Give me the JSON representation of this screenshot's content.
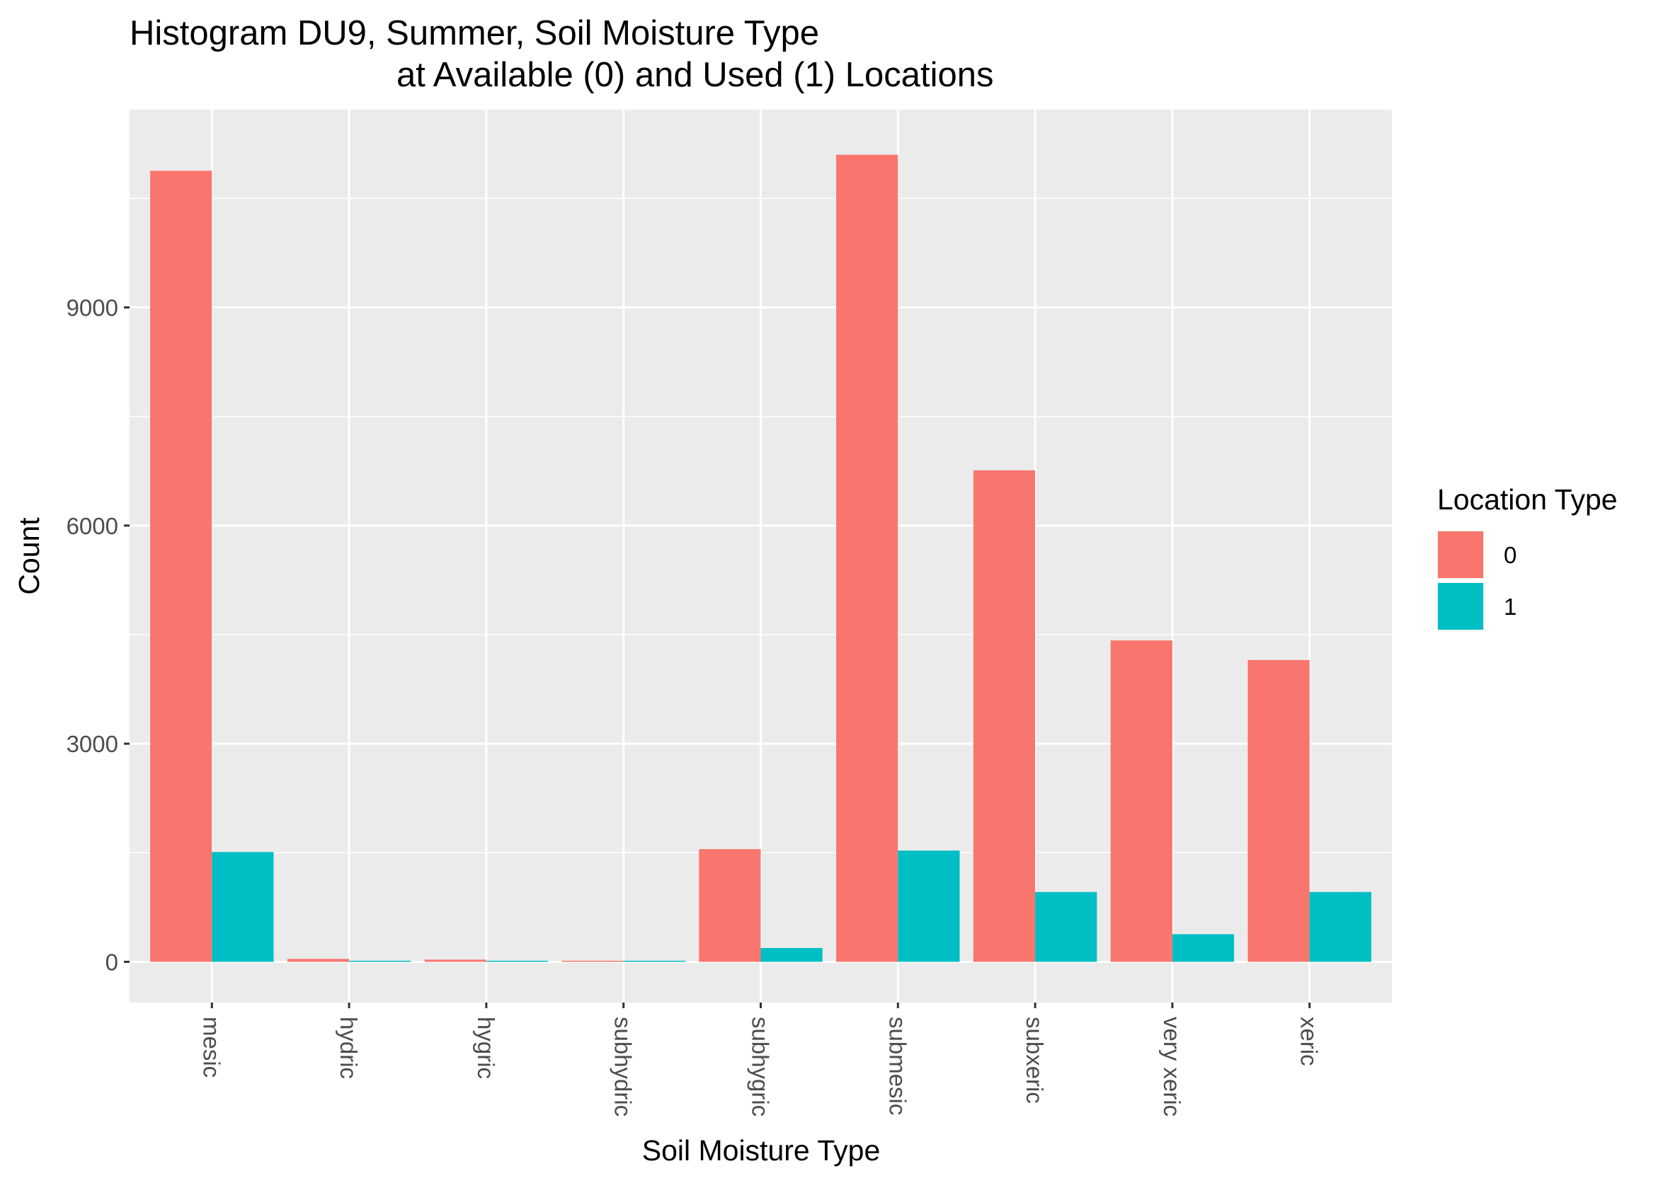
{
  "chart_data": {
    "type": "bar",
    "title_line1": "Histogram DU9, Summer, Soil Moisture Type",
    "title_line2": "at Available (0) and Used (1) Locations",
    "xlabel": "Soil Moisture Type",
    "ylabel": "Count",
    "categories": [
      "mesic",
      "hydric",
      "hygric",
      "subhydric",
      "subhygric",
      "submesic",
      "subxeric",
      "very xeric",
      "xeric"
    ],
    "series": [
      {
        "name": "0",
        "color": "#F8766D",
        "values": [
          10880,
          40,
          30,
          10,
          1550,
          11100,
          6760,
          4420,
          4150
        ]
      },
      {
        "name": "1",
        "color": "#00BFC4",
        "values": [
          1510,
          10,
          10,
          5,
          190,
          1530,
          960,
          380,
          960
        ]
      }
    ],
    "ylim": [
      -560,
      11720
    ],
    "yticks": [
      0,
      3000,
      6000,
      9000
    ],
    "ytick_labels": [
      "0",
      "3000",
      "6000",
      "9000"
    ],
    "legend": {
      "title": "Location Type",
      "placement": "right"
    },
    "grid": true,
    "panel_background": "#EBEBEB"
  }
}
